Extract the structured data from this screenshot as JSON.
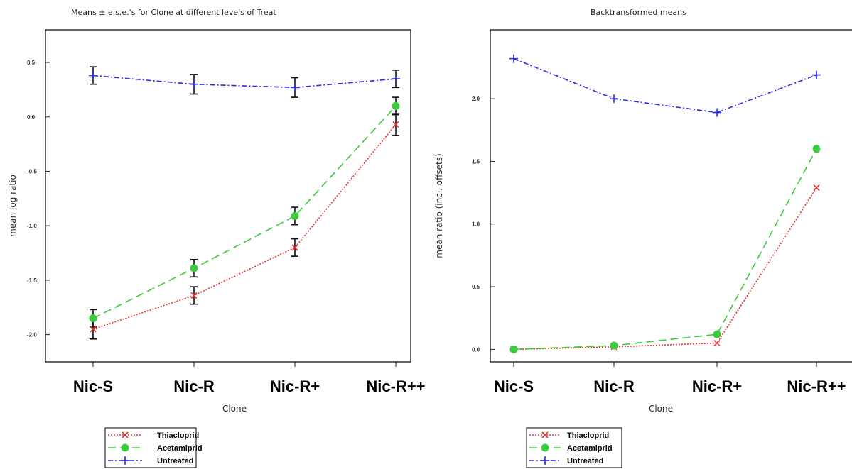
{
  "chart_data": [
    {
      "type": "line",
      "title": "Means   ± e.s.e.'s for Clone at different levels of Treat",
      "xlabel": "Clone",
      "ylabel": "mean log ratio",
      "categories": [
        "Nic-S",
        "Nic-R",
        "Nic-R+",
        "Nic-R++"
      ],
      "yticks": [
        0.5,
        0.0,
        -0.5,
        -1.0,
        -1.5,
        -2.0
      ],
      "ytick_labels": [
        "0.5",
        "0.0",
        "-0.5",
        "-1.0",
        "-1.5",
        "-2.0"
      ],
      "ylim": [
        -2.25,
        0.8
      ],
      "error_bars": true,
      "grid": false,
      "legend": "bottom-left",
      "series": [
        {
          "name": "Thiacloprid",
          "color": "#e8312f",
          "dash": "2,2",
          "marker": "x",
          "values": [
            -1.95,
            -1.64,
            -1.2,
            -0.07
          ],
          "err": [
            0.09,
            0.08,
            0.08,
            0.1
          ]
        },
        {
          "name": "Acetamiprid",
          "color": "#3ccb3c",
          "dash": "11,6",
          "marker": "circle",
          "values": [
            -1.85,
            -1.39,
            -0.91,
            0.1
          ],
          "err": [
            0.08,
            0.08,
            0.08,
            0.08
          ]
        },
        {
          "name": "Untreated",
          "color": "#2b2bea",
          "dash": "7,3,2,3",
          "marker": "plus",
          "values": [
            0.38,
            0.3,
            0.27,
            0.35
          ],
          "err": [
            0.08,
            0.09,
            0.09,
            0.08
          ]
        }
      ]
    },
    {
      "type": "line",
      "title": "Backtransformed means",
      "xlabel": "Clone",
      "ylabel": "mean ratio (incl. offsets)",
      "categories": [
        "Nic-S",
        "Nic-R",
        "Nic-R+",
        "Nic-R++"
      ],
      "yticks": [
        2.0,
        1.5,
        1.0,
        0.5,
        0.0
      ],
      "ytick_labels": [
        "2.0",
        "1.5",
        "1.0",
        "0.5",
        "0.0"
      ],
      "ylim": [
        -0.1,
        2.55
      ],
      "error_bars": false,
      "grid": false,
      "legend": "bottom-left",
      "series": [
        {
          "name": "Thiacloprid",
          "color": "#e8312f",
          "dash": "2,2",
          "marker": "x",
          "values": [
            0.0,
            0.02,
            0.05,
            1.29
          ]
        },
        {
          "name": "Acetamiprid",
          "color": "#3ccb3c",
          "dash": "11,6",
          "marker": "circle",
          "values": [
            0.0,
            0.03,
            0.12,
            1.6
          ]
        },
        {
          "name": "Untreated",
          "color": "#2b2bea",
          "dash": "7,3,2,3",
          "marker": "plus",
          "values": [
            2.32,
            2.0,
            1.89,
            2.19
          ]
        }
      ]
    }
  ]
}
